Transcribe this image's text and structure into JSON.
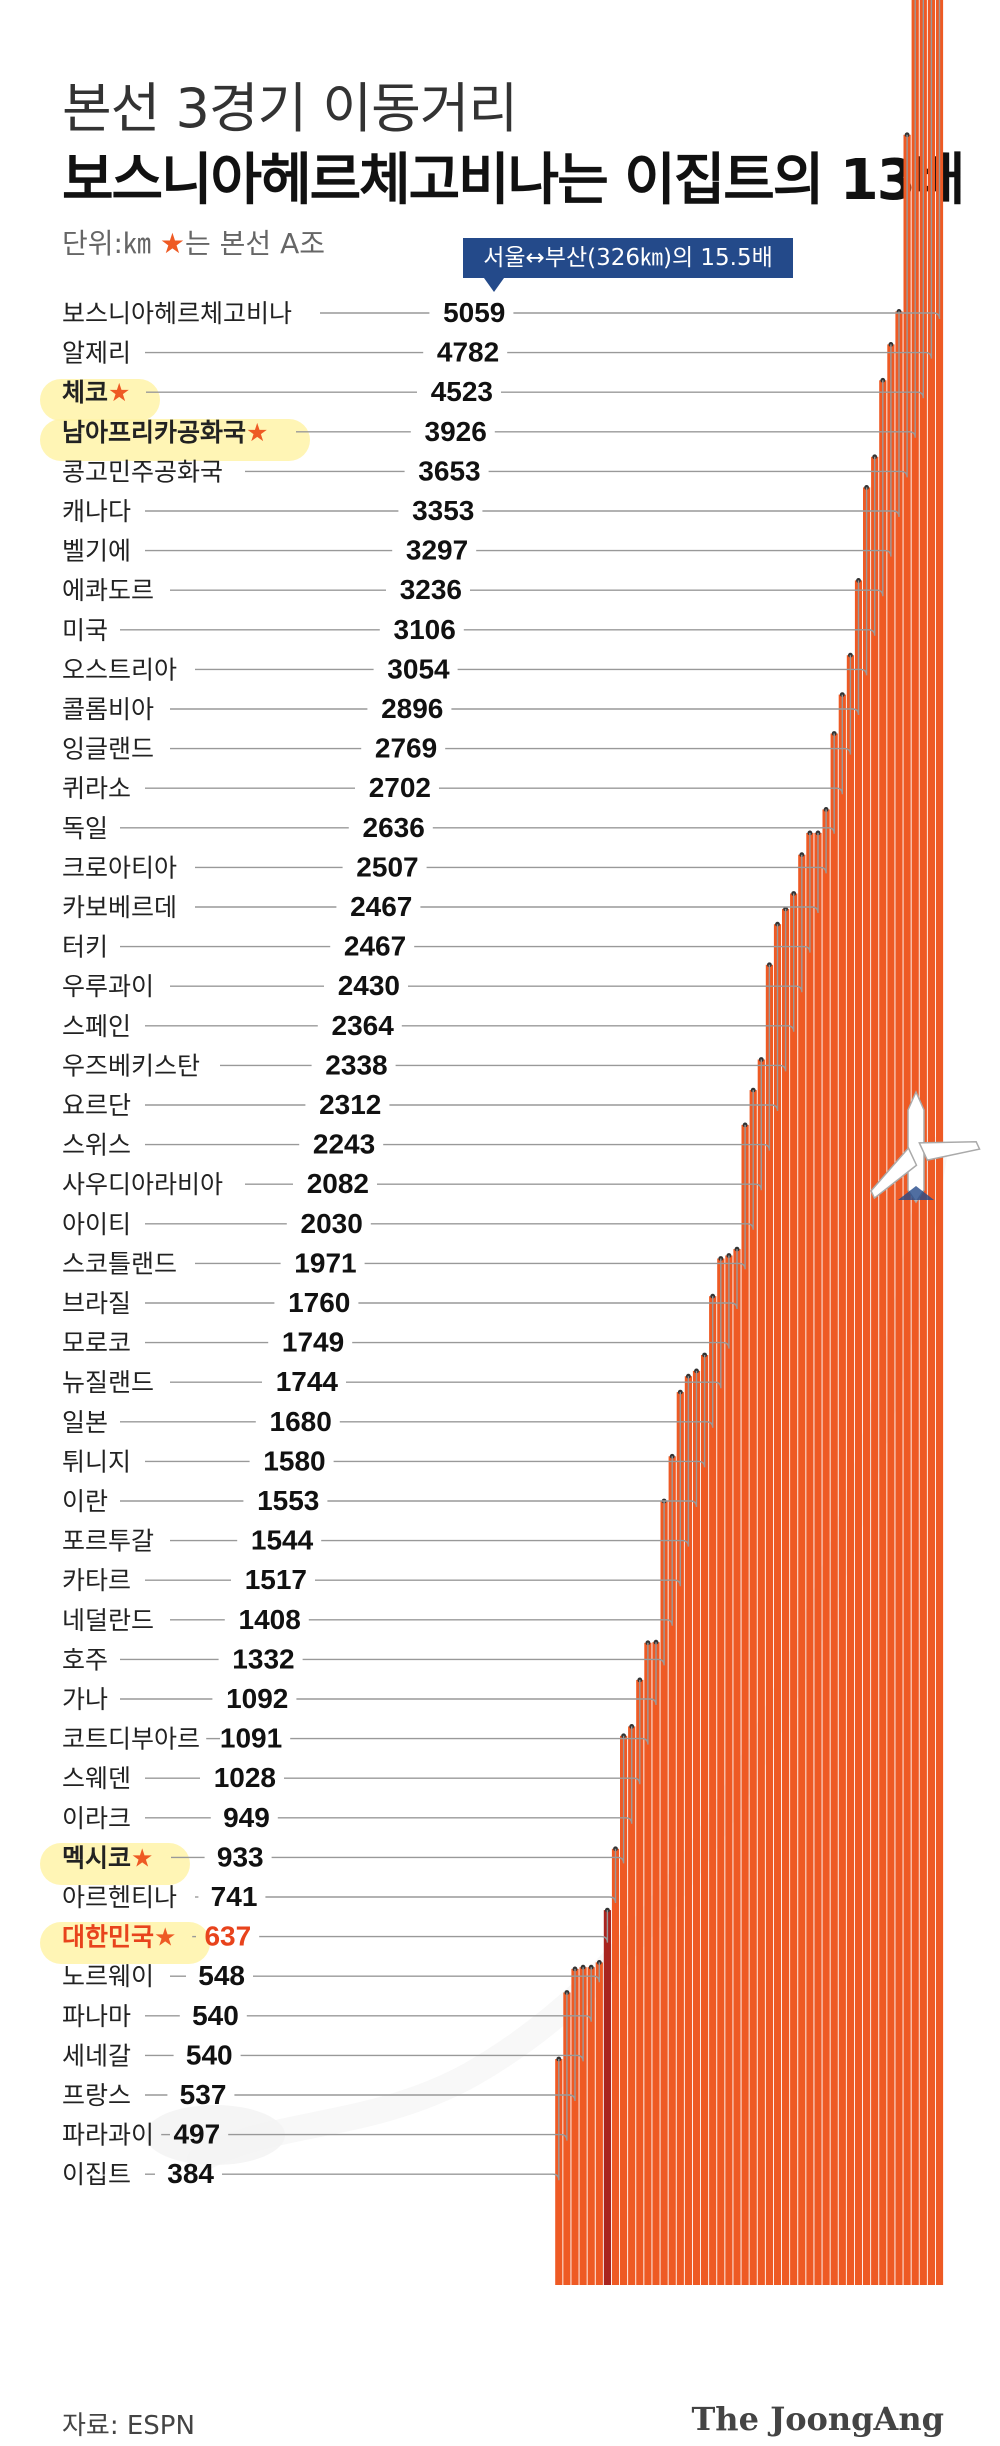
{
  "title_line1": "본선 3경기 이동거리",
  "title_line2": "보스니아헤르체고비나는 이집트의 13배",
  "unit_text": "단위:㎞",
  "unit_star": "★",
  "unit_star_text": "는 본선 A조",
  "callout": "서울↔부산(326㎞)의 15.5배",
  "source": "자료: ESPN",
  "logo": "The JoongAng",
  "colors": {
    "bar": "#ee5a24",
    "korea_bar": "#a8241f",
    "korea_text": "#e8431c",
    "star": "#ee5a24",
    "leader": "#999999",
    "callout": "#244a8a"
  },
  "chart_data": {
    "type": "bar",
    "ylabel": "단위:㎞",
    "ylim": [
      0,
      5059
    ],
    "categories": [
      "보스니아헤르체고비나",
      "알제리",
      "체코",
      "남아프리카공화국",
      "콩고민주공화국",
      "캐나다",
      "벨기에",
      "에콰도르",
      "미국",
      "오스트리아",
      "콜롬비아",
      "잉글랜드",
      "퀴라소",
      "독일",
      "크로아티아",
      "카보베르데",
      "터키",
      "우루과이",
      "스페인",
      "우즈베키스탄",
      "요르단",
      "스위스",
      "사우디아라비아",
      "아이티",
      "스코틀랜드",
      "브라질",
      "모로코",
      "뉴질랜드",
      "일본",
      "튀니지",
      "이란",
      "포르투갈",
      "카타르",
      "네덜란드",
      "호주",
      "가나",
      "코트디부아르",
      "스웨덴",
      "이라크",
      "멕시코",
      "아르헨티나",
      "대한민국",
      "노르웨이",
      "파나마",
      "세네갈",
      "프랑스",
      "파라과이",
      "이집트"
    ],
    "values": [
      5059,
      4782,
      4523,
      3926,
      3653,
      3353,
      3297,
      3236,
      3106,
      3054,
      2896,
      2769,
      2702,
      2636,
      2507,
      2467,
      2467,
      2430,
      2364,
      2338,
      2312,
      2243,
      2082,
      2030,
      1971,
      1760,
      1749,
      1744,
      1680,
      1580,
      1553,
      1544,
      1517,
      1408,
      1332,
      1092,
      1091,
      1028,
      949,
      933,
      741,
      637,
      548,
      540,
      540,
      537,
      497,
      384
    ],
    "group_a": [
      "체코",
      "남아프리카공화국",
      "멕시코",
      "대한민국"
    ],
    "highlight": "대한민국"
  }
}
